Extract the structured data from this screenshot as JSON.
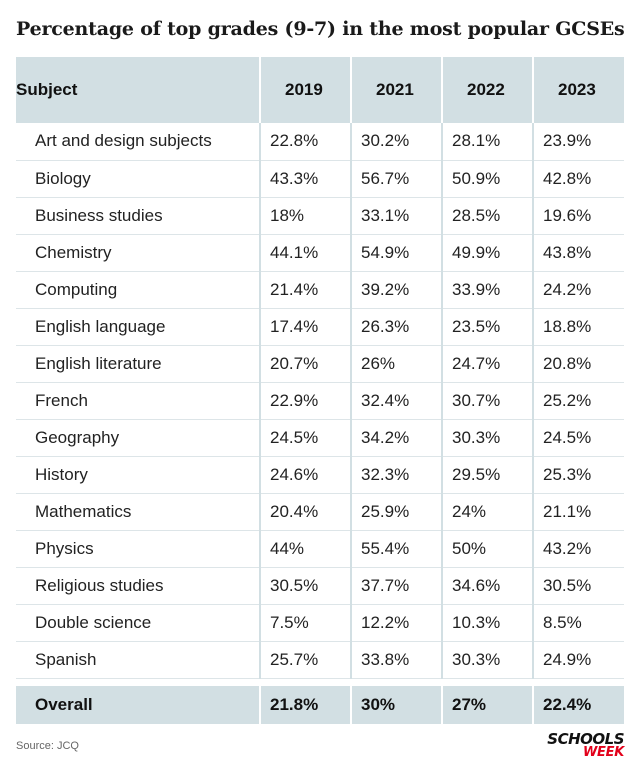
{
  "chart_data": {
    "type": "table",
    "title": "Percentage of top grades (9-7) in the most popular GCSEs",
    "columns": [
      "Subject",
      "2019",
      "2021",
      "2022",
      "2023"
    ],
    "rows": [
      [
        "Art and design subjects",
        "22.8%",
        "30.2%",
        "28.1%",
        "23.9%"
      ],
      [
        "Biology",
        "43.3%",
        "56.7%",
        "50.9%",
        "42.8%"
      ],
      [
        "Business studies",
        "18%",
        "33.1%",
        "28.5%",
        "19.6%"
      ],
      [
        "Chemistry",
        "44.1%",
        "54.9%",
        "49.9%",
        "43.8%"
      ],
      [
        "Computing",
        "21.4%",
        "39.2%",
        "33.9%",
        "24.2%"
      ],
      [
        "English language",
        "17.4%",
        "26.3%",
        "23.5%",
        "18.8%"
      ],
      [
        "English literature",
        "20.7%",
        "26%",
        "24.7%",
        "20.8%"
      ],
      [
        "French",
        "22.9%",
        "32.4%",
        "30.7%",
        "25.2%"
      ],
      [
        "Geography",
        "24.5%",
        "34.2%",
        "30.3%",
        "24.5%"
      ],
      [
        "History",
        "24.6%",
        "32.3%",
        "29.5%",
        "25.3%"
      ],
      [
        "Mathematics",
        "20.4%",
        "25.9%",
        "24%",
        "21.1%"
      ],
      [
        "Physics",
        "44%",
        "55.4%",
        "50%",
        "43.2%"
      ],
      [
        "Religious studies",
        "30.5%",
        "37.7%",
        "34.6%",
        "30.5%"
      ],
      [
        "Double science",
        "7.5%",
        "12.2%",
        "10.3%",
        "8.5%"
      ],
      [
        "Spanish",
        "25.7%",
        "33.8%",
        "30.3%",
        "24.9%"
      ]
    ],
    "total_row": [
      "Overall",
      "21.8%",
      "30%",
      "27%",
      "22.4%"
    ],
    "header_color": "#d2dfe3"
  },
  "footer": {
    "source": "Source: JCQ",
    "logo_line1": "SCHOOLS",
    "logo_line2": "WEEK",
    "logo_accent_color": "#e2001a"
  }
}
